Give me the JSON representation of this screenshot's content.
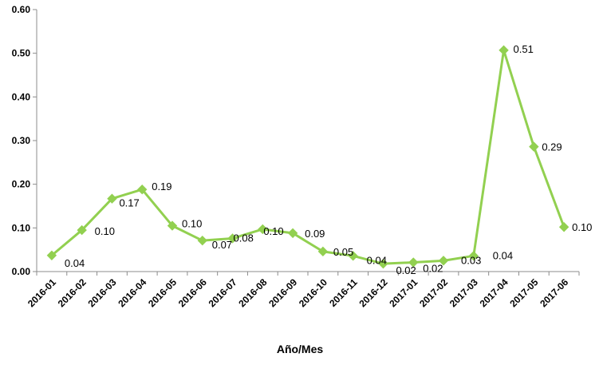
{
  "chart_data": {
    "type": "line",
    "title": "",
    "xlabel": "Año/Mes",
    "ylabel": "",
    "ylim": [
      0,
      0.6
    ],
    "yticks": [
      "0.00",
      "0.10",
      "0.20",
      "0.30",
      "0.40",
      "0.50",
      "0.60"
    ],
    "grid": false,
    "legend": "none",
    "line_color": "#92D050",
    "categories": [
      "2016-01",
      "2016-02",
      "2016-03",
      "2016-04",
      "2016-05",
      "2016-06",
      "2016-07",
      "2016-08",
      "2016-09",
      "2016-10",
      "2016-11",
      "2016-12",
      "2017-01",
      "2017-02",
      "2017-03",
      "2017-04",
      "2017-05",
      "2017-06"
    ],
    "values": [
      0.037,
      0.095,
      0.167,
      0.188,
      0.105,
      0.071,
      0.076,
      0.097,
      0.088,
      0.046,
      0.036,
      0.018,
      0.021,
      0.025,
      0.036,
      0.507,
      0.286,
      0.102
    ],
    "data_labels": [
      "0.04",
      "0.10",
      "0.17",
      "0.19",
      "0.10",
      "0.07",
      "0.08",
      "0.10",
      "0.09",
      "0.05",
      "0.04",
      "0.02",
      "0.02",
      "0.03",
      "0.04",
      "0.51",
      "0.29",
      "0.10"
    ]
  }
}
